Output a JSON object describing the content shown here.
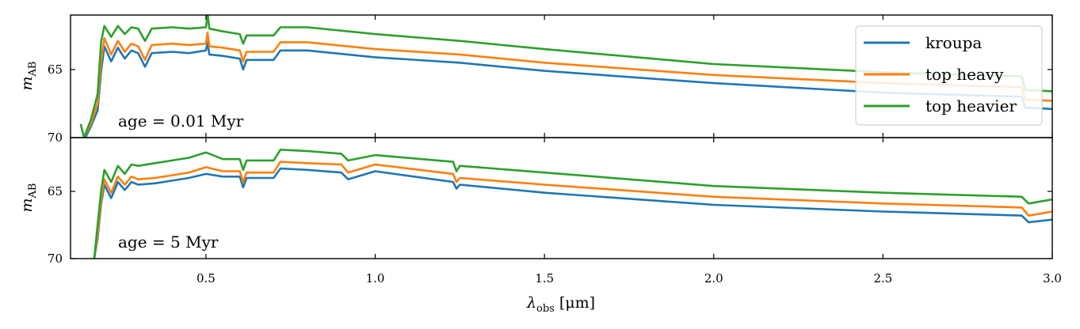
{
  "chart_data": [
    {
      "type": "line",
      "panel": "top",
      "annotation": "age = 0.01 Myr",
      "ylabel_main": "m",
      "ylabel_sub": "AB",
      "xlim": [
        0.1,
        3.0
      ],
      "ylim": [
        70,
        61
      ],
      "yticks": [
        65,
        70
      ],
      "ytick_labels": [
        "65",
        "70"
      ],
      "series": [
        {
          "name": "kroupa",
          "color": "#1f77b4",
          "points": [
            [
              0.14,
              70.2
            ],
            [
              0.16,
              69.2
            ],
            [
              0.18,
              68
            ],
            [
              0.19,
              65.2
            ],
            [
              0.2,
              63.3
            ],
            [
              0.22,
              64.4
            ],
            [
              0.24,
              63.4
            ],
            [
              0.26,
              64.2
            ],
            [
              0.28,
              63.6
            ],
            [
              0.3,
              63.8
            ],
            [
              0.32,
              64.8
            ],
            [
              0.34,
              63.8
            ],
            [
              0.4,
              63.7
            ],
            [
              0.45,
              63.8
            ],
            [
              0.5,
              63.6
            ],
            [
              0.505,
              63.0
            ],
            [
              0.51,
              63.9
            ],
            [
              0.55,
              64.0
            ],
            [
              0.6,
              64.2
            ],
            [
              0.61,
              65.0
            ],
            [
              0.62,
              64.3
            ],
            [
              0.7,
              64.3
            ],
            [
              0.72,
              63.6
            ],
            [
              0.8,
              63.6
            ],
            [
              1.0,
              64.1
            ],
            [
              1.25,
              64.5
            ],
            [
              1.5,
              65.1
            ],
            [
              2.0,
              66.0
            ],
            [
              2.5,
              66.7
            ],
            [
              2.91,
              67.0
            ],
            [
              2.92,
              67.8
            ],
            [
              3.0,
              67.9
            ]
          ]
        },
        {
          "name": "top heavy",
          "color": "#ff7f0e",
          "points": [
            [
              0.14,
              70.0
            ],
            [
              0.16,
              69.0
            ],
            [
              0.18,
              67.5
            ],
            [
              0.19,
              64.4
            ],
            [
              0.2,
              62.7
            ],
            [
              0.22,
              63.9
            ],
            [
              0.24,
              62.9
            ],
            [
              0.26,
              63.7
            ],
            [
              0.28,
              63.1
            ],
            [
              0.3,
              63.3
            ],
            [
              0.32,
              64.3
            ],
            [
              0.34,
              63.2
            ],
            [
              0.4,
              63.1
            ],
            [
              0.45,
              63.2
            ],
            [
              0.5,
              63.1
            ],
            [
              0.505,
              62.3
            ],
            [
              0.51,
              63.3
            ],
            [
              0.55,
              63.4
            ],
            [
              0.6,
              63.6
            ],
            [
              0.61,
              64.4
            ],
            [
              0.62,
              63.7
            ],
            [
              0.7,
              63.7
            ],
            [
              0.72,
              63.0
            ],
            [
              0.8,
              63.0
            ],
            [
              1.0,
              63.5
            ],
            [
              1.25,
              63.9
            ],
            [
              1.5,
              64.5
            ],
            [
              2.0,
              65.4
            ],
            [
              2.5,
              66.0
            ],
            [
              2.91,
              66.3
            ],
            [
              2.92,
              67.2
            ],
            [
              3.0,
              67.3
            ]
          ]
        },
        {
          "name": "top heavier",
          "color": "#2ca02c",
          "points": [
            [
              0.13,
              69.0
            ],
            [
              0.14,
              70.0
            ],
            [
              0.16,
              68.7
            ],
            [
              0.18,
              66.8
            ],
            [
              0.19,
              63.0
            ],
            [
              0.2,
              61.8
            ],
            [
              0.22,
              62.6
            ],
            [
              0.24,
              61.8
            ],
            [
              0.26,
              62.4
            ],
            [
              0.28,
              61.9
            ],
            [
              0.3,
              62.0
            ],
            [
              0.32,
              62.9
            ],
            [
              0.34,
              62.0
            ],
            [
              0.4,
              61.9
            ],
            [
              0.45,
              62.0
            ],
            [
              0.5,
              61.9
            ],
            [
              0.505,
              60.9
            ],
            [
              0.51,
              62.0
            ],
            [
              0.55,
              62.2
            ],
            [
              0.6,
              62.4
            ],
            [
              0.61,
              63.1
            ],
            [
              0.62,
              62.5
            ],
            [
              0.7,
              62.5
            ],
            [
              0.72,
              61.9
            ],
            [
              0.8,
              61.9
            ],
            [
              1.0,
              62.4
            ],
            [
              1.25,
              62.9
            ],
            [
              1.5,
              63.5
            ],
            [
              2.0,
              64.6
            ],
            [
              2.5,
              65.2
            ],
            [
              2.91,
              65.5
            ],
            [
              2.92,
              66.5
            ],
            [
              3.0,
              66.6
            ]
          ]
        }
      ]
    },
    {
      "type": "line",
      "panel": "bottom",
      "annotation": "age = 5 Myr",
      "ylabel_main": "m",
      "ylabel_sub": "AB",
      "xlabel_main": "λ",
      "xlabel_sub": "obs",
      "xlabel_unit": "[μm]",
      "xlim": [
        0.1,
        3.0
      ],
      "ylim": [
        70,
        61
      ],
      "xticks": [
        0.5,
        1.0,
        1.5,
        2.0,
        2.5,
        3.0
      ],
      "xtick_labels": [
        "0.5",
        "1.0",
        "1.5",
        "2.0",
        "2.5",
        "3.0"
      ],
      "yticks": [
        65,
        70
      ],
      "ytick_labels": [
        "65",
        "70"
      ],
      "series": [
        {
          "name": "kroupa",
          "color": "#1f77b4",
          "points": [
            [
              0.17,
              70.0
            ],
            [
              0.18,
              68.5
            ],
            [
              0.19,
              66.0
            ],
            [
              0.2,
              64.5
            ],
            [
              0.22,
              65.5
            ],
            [
              0.24,
              64.3
            ],
            [
              0.26,
              64.9
            ],
            [
              0.28,
              64.3
            ],
            [
              0.3,
              64.5
            ],
            [
              0.35,
              64.4
            ],
            [
              0.4,
              64.2
            ],
            [
              0.45,
              64.0
            ],
            [
              0.5,
              63.7
            ],
            [
              0.55,
              63.9
            ],
            [
              0.6,
              63.9
            ],
            [
              0.61,
              64.7
            ],
            [
              0.62,
              64.0
            ],
            [
              0.7,
              64.0
            ],
            [
              0.72,
              63.3
            ],
            [
              0.8,
              63.4
            ],
            [
              0.9,
              63.6
            ],
            [
              0.92,
              64.1
            ],
            [
              1.0,
              63.5
            ],
            [
              1.23,
              64.3
            ],
            [
              1.24,
              64.8
            ],
            [
              1.25,
              64.5
            ],
            [
              1.5,
              65.1
            ],
            [
              2.0,
              66.0
            ],
            [
              2.5,
              66.5
            ],
            [
              2.91,
              66.8
            ],
            [
              2.93,
              67.3
            ],
            [
              3.0,
              67.1
            ]
          ]
        },
        {
          "name": "top heavy",
          "color": "#ff7f0e",
          "points": [
            [
              0.17,
              70.0
            ],
            [
              0.18,
              68.2
            ],
            [
              0.19,
              65.7
            ],
            [
              0.2,
              64.1
            ],
            [
              0.22,
              65.1
            ],
            [
              0.24,
              63.9
            ],
            [
              0.26,
              64.5
            ],
            [
              0.28,
              63.9
            ],
            [
              0.3,
              64.1
            ],
            [
              0.35,
              64.0
            ],
            [
              0.4,
              63.8
            ],
            [
              0.45,
              63.6
            ],
            [
              0.5,
              63.2
            ],
            [
              0.55,
              63.5
            ],
            [
              0.6,
              63.5
            ],
            [
              0.61,
              64.3
            ],
            [
              0.62,
              63.6
            ],
            [
              0.7,
              63.6
            ],
            [
              0.72,
              62.8
            ],
            [
              0.8,
              62.9
            ],
            [
              0.9,
              63.0
            ],
            [
              0.92,
              63.6
            ],
            [
              1.0,
              63.0
            ],
            [
              1.23,
              63.7
            ],
            [
              1.24,
              64.3
            ],
            [
              1.25,
              64.0
            ],
            [
              1.5,
              64.5
            ],
            [
              2.0,
              65.4
            ],
            [
              2.5,
              65.9
            ],
            [
              2.91,
              66.2
            ],
            [
              2.93,
              66.8
            ],
            [
              3.0,
              66.5
            ]
          ]
        },
        {
          "name": "top heavier",
          "color": "#2ca02c",
          "points": [
            [
              0.17,
              70.0
            ],
            [
              0.18,
              67.5
            ],
            [
              0.19,
              65.0
            ],
            [
              0.2,
              63.4
            ],
            [
              0.22,
              64.3
            ],
            [
              0.24,
              63.1
            ],
            [
              0.26,
              63.7
            ],
            [
              0.28,
              63.0
            ],
            [
              0.3,
              63.1
            ],
            [
              0.35,
              62.9
            ],
            [
              0.4,
              62.7
            ],
            [
              0.45,
              62.5
            ],
            [
              0.5,
              62.1
            ],
            [
              0.55,
              62.6
            ],
            [
              0.6,
              62.6
            ],
            [
              0.61,
              63.4
            ],
            [
              0.62,
              62.7
            ],
            [
              0.7,
              62.7
            ],
            [
              0.72,
              61.9
            ],
            [
              0.8,
              62.0
            ],
            [
              0.9,
              62.2
            ],
            [
              0.92,
              62.7
            ],
            [
              1.0,
              62.3
            ],
            [
              1.23,
              62.8
            ],
            [
              1.24,
              63.5
            ],
            [
              1.25,
              63.1
            ],
            [
              1.5,
              63.6
            ],
            [
              2.0,
              64.6
            ],
            [
              2.5,
              65.1
            ],
            [
              2.91,
              65.4
            ],
            [
              2.93,
              65.9
            ],
            [
              3.0,
              65.6
            ]
          ]
        }
      ]
    }
  ],
  "legend": [
    {
      "label": "kroupa",
      "color": "#1f77b4"
    },
    {
      "label": "top heavy",
      "color": "#ff7f0e"
    },
    {
      "label": "top heavier",
      "color": "#2ca02c"
    }
  ]
}
